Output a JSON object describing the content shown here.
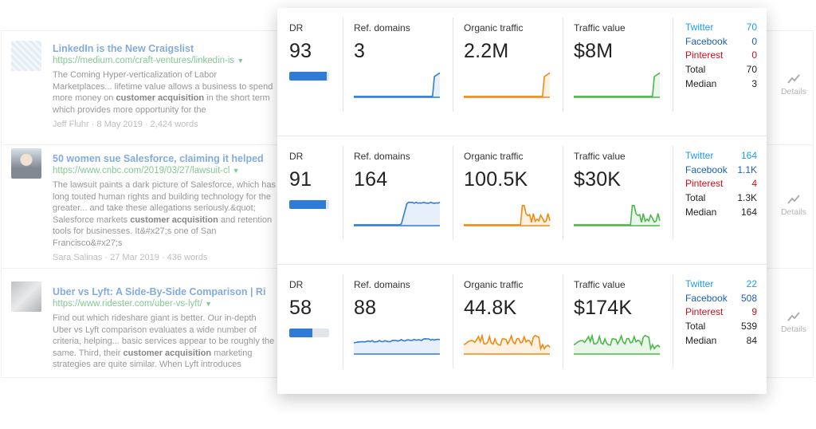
{
  "results": [
    {
      "title": "LinkedIn is the New Craigslist",
      "url": "https://medium.com/craft-ventures/linkedin-is",
      "snippet_html": "The Coming Hyper-verticalization of Labor Marketplaces... lifetime value allows a business to spend more money on <b>customer acquisition</b> in the short term which provides more opportunity for the",
      "meta": "Jeff Fluhr · 8 May 2019 · 2,424 words",
      "details_label": "Details"
    },
    {
      "title": "50 women sue Salesforce, claiming it helped",
      "url": "https://www.cnbc.com/2019/03/27/lawsuit-cl",
      "snippet_html": "The lawsuit paints a dark picture of Salesforce, which has long touted human rights and building technology for the greater... and take these allegations seriously.&amp;quot; Salesforce markets <b>customer acquisition</b> and retention tools for businesses. It&amp;#x27;s one of San Francisco&amp;#x27;s",
      "meta": "Sara Salinas · 27 Mar 2019 · 436 words",
      "details_label": "Details"
    },
    {
      "title": "Uber vs Lyft: A Side-By-Side Comparison | Ri",
      "url": "https://www.ridester.com/uber-vs-lyft/",
      "snippet_html": "Find out which rideshare giant is better. Our in-depth Uber vs Lyft comparison evaluates a wide number of criteria, helping... basic services appear to be roughly the same. Third, their <b>customer acquisition</b> marketing strategies are quite similar. When Lyft introduces",
      "meta": "",
      "details_label": "Details"
    }
  ],
  "metrics": [
    {
      "dr_label": "DR",
      "dr": "93",
      "dr_fill": 0.93,
      "ref_label": "Ref. domains",
      "ref": "3",
      "org_label": "Organic traffic",
      "org": "2.2M",
      "val_label": "Traffic value",
      "val": "$8M",
      "social": {
        "twitter_label": "Twitter",
        "twitter": "70",
        "facebook_label": "Facebook",
        "facebook": "0",
        "pinterest_label": "Pinterest",
        "pinterest": "0",
        "total_label": "Total",
        "total": "70",
        "median_label": "Median",
        "median": "3"
      }
    },
    {
      "dr_label": "DR",
      "dr": "91",
      "dr_fill": 0.91,
      "ref_label": "Ref. domains",
      "ref": "164",
      "org_label": "Organic traffic",
      "org": "100.5K",
      "val_label": "Traffic value",
      "val": "$30K",
      "social": {
        "twitter_label": "Twitter",
        "twitter": "164",
        "facebook_label": "Facebook",
        "facebook": "1.1K",
        "pinterest_label": "Pinterest",
        "pinterest": "4",
        "total_label": "Total",
        "total": "1.3K",
        "median_label": "Median",
        "median": "164"
      }
    },
    {
      "dr_label": "DR",
      "dr": "58",
      "dr_fill": 0.58,
      "ref_label": "Ref. domains",
      "ref": "88",
      "org_label": "Organic traffic",
      "org": "44.8K",
      "val_label": "Traffic value",
      "val": "$174K",
      "social": {
        "twitter_label": "Twitter",
        "twitter": "22",
        "facebook_label": "Facebook",
        "facebook": "508",
        "pinterest_label": "Pinterest",
        "pinterest": "9",
        "total_label": "Total",
        "total": "539",
        "median_label": "Median",
        "median": "84"
      }
    }
  ],
  "colors": {
    "ref_line": "#2f7cd8",
    "organic_line": "#f08a12",
    "value_line": "#4cb84a",
    "twitter": "#1d9bf0",
    "facebook": "#1b5fb8",
    "pinterest": "#cc0d1d"
  },
  "icons": {
    "details": "trend-line-icon"
  }
}
